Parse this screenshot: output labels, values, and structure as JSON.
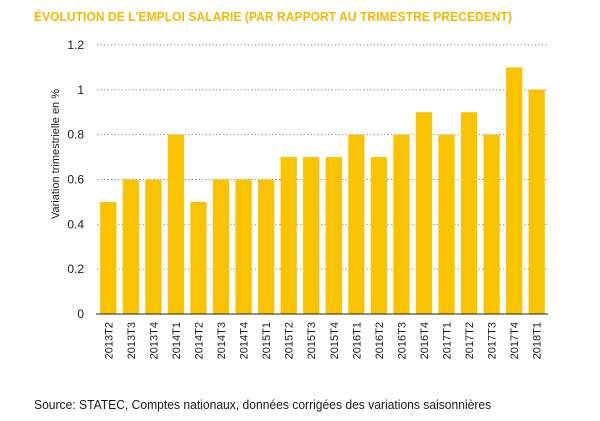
{
  "chart_data": {
    "type": "bar",
    "title": "ÉVOLUTION DE L'EMPLOI SALARIE (PAR RAPPORT AU TRIMESTRE PRECEDENT)",
    "xlabel": "",
    "ylabel": "Variation trimestrielle en %",
    "categories": [
      "2013T2",
      "2013T3",
      "2013T4",
      "2014T1",
      "2014T2",
      "2014T3",
      "2014T4",
      "2015T1",
      "2015T2",
      "2015T3",
      "2015T4",
      "2016T1",
      "2016T2",
      "2016T3",
      "2016T4",
      "2017T1",
      "2017T2",
      "2017T3",
      "2017T4",
      "2018T1"
    ],
    "values": [
      0.5,
      0.6,
      0.6,
      0.8,
      0.5,
      0.6,
      0.6,
      0.6,
      0.7,
      0.7,
      0.7,
      0.8,
      0.7,
      0.8,
      0.9,
      0.8,
      0.9,
      0.8,
      1.1,
      1.0
    ],
    "ylim": [
      0,
      1.2
    ],
    "yticks": [
      "0",
      "0.2",
      "0.4",
      "0.6",
      "0.8",
      "1",
      "1.2"
    ],
    "grid": true,
    "legend": "none",
    "bar_color": "#f9c300",
    "title_color": "#f5b800"
  },
  "source": "Source: STATEC, Comptes nationaux, données corrigées des variations saisonnières"
}
